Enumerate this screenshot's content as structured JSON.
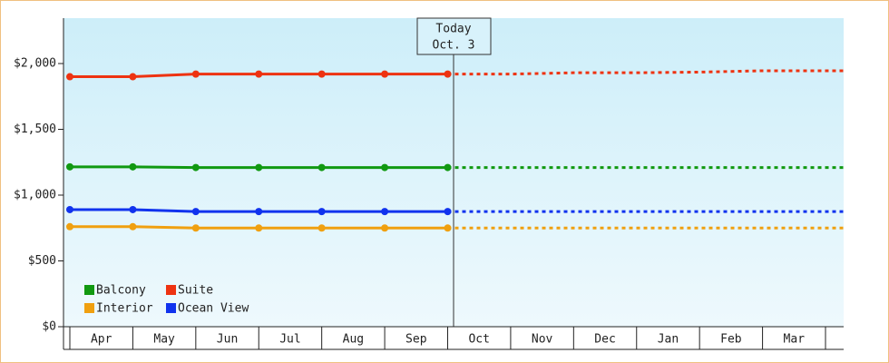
{
  "chart_data": {
    "type": "line",
    "categories": [
      "Apr",
      "May",
      "Jun",
      "Jul",
      "Aug",
      "Sep",
      "Oct",
      "Nov",
      "Dec",
      "Jan",
      "Feb",
      "Mar"
    ],
    "series": [
      {
        "name": "Balcony",
        "color": "#119911",
        "values": [
          1215,
          1215,
          1210,
          1210,
          1210,
          1210,
          1210,
          null,
          null,
          null,
          null,
          null
        ],
        "forecast": [
          null,
          null,
          null,
          null,
          null,
          null,
          1210,
          1210,
          1210,
          1210,
          1210,
          1210
        ]
      },
      {
        "name": "Suite",
        "color": "#ee3311",
        "values": [
          1900,
          1900,
          1920,
          1920,
          1920,
          1920,
          1920,
          null,
          null,
          null,
          null,
          null
        ],
        "forecast": [
          null,
          null,
          null,
          null,
          null,
          null,
          1920,
          1920,
          1930,
          1930,
          1935,
          1945
        ]
      },
      {
        "name": "Interior",
        "color": "#f0a010",
        "values": [
          760,
          760,
          750,
          750,
          750,
          750,
          750,
          null,
          null,
          null,
          null,
          null
        ],
        "forecast": [
          null,
          null,
          null,
          null,
          null,
          null,
          750,
          750,
          750,
          750,
          750,
          750
        ]
      },
      {
        "name": "Ocean View",
        "color": "#1133ee",
        "values": [
          890,
          890,
          875,
          875,
          875,
          875,
          875,
          null,
          null,
          null,
          null,
          null
        ],
        "forecast": [
          null,
          null,
          null,
          null,
          null,
          null,
          875,
          875,
          875,
          875,
          875,
          875
        ]
      }
    ],
    "ylim": [
      0,
      2345
    ],
    "yticks": [
      {
        "value": 0,
        "label": "$0"
      },
      {
        "value": 500,
        "label": "$500"
      },
      {
        "value": 1000,
        "label": "$1,000"
      },
      {
        "value": 1500,
        "label": "$1,500"
      },
      {
        "value": 2000,
        "label": "$2,000"
      }
    ],
    "annotation": [
      "Today",
      "Oct. 3"
    ],
    "legend": "lower-left"
  }
}
